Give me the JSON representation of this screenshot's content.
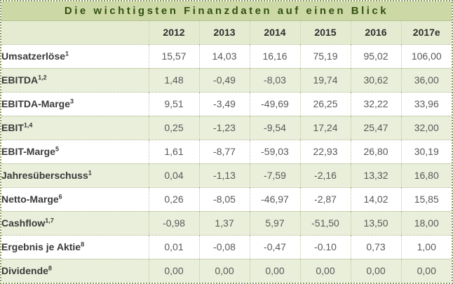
{
  "window": {
    "title": "Die wichtigsten Finanzdaten auf einen Blick"
  },
  "colors": {
    "title_bg": "#cdd8a7",
    "title_text": "#32500f",
    "header_bg": "#e5ebd1",
    "row_alt_bg": "#eaefdb",
    "row_bg": "#ffffff",
    "border_outer": "#8d9c5e",
    "label_text": "#3a3a3a",
    "value_text": "#595959"
  },
  "chart_data": {
    "type": "table",
    "title": "Die wichtigsten Finanzdaten auf einen Blick",
    "columns": [
      "2012",
      "2013",
      "2014",
      "2015",
      "2016",
      "2017e"
    ],
    "rows": [
      {
        "label": "Umsatzerlöse",
        "sup": "1",
        "values": [
          "15,57",
          "14,03",
          "16,16",
          "75,19",
          "95,02",
          "106,00"
        ]
      },
      {
        "label": "EBITDA",
        "sup": "1,2",
        "values": [
          "1,48",
          "-0,49",
          "-8,03",
          "19,74",
          "30,62",
          "36,00"
        ]
      },
      {
        "label": "EBITDA-Marge",
        "sup": "3",
        "values": [
          "9,51",
          "-3,49",
          "-49,69",
          "26,25",
          "32,22",
          "33,96"
        ]
      },
      {
        "label": "EBIT",
        "sup": "1,4",
        "values": [
          "0,25",
          "-1,23",
          "-9,54",
          "17,24",
          "25,47",
          "32,00"
        ]
      },
      {
        "label": "EBIT-Marge",
        "sup": "5",
        "values": [
          "1,61",
          "-8,77",
          "-59,03",
          "22,93",
          "26,80",
          "30,19"
        ]
      },
      {
        "label": "Jahresüberschuss",
        "sup": "1",
        "values": [
          "0,04",
          "-1,13",
          "-7,59",
          "-2,16",
          "13,32",
          "16,80"
        ]
      },
      {
        "label": "Netto-Marge",
        "sup": "6",
        "values": [
          "0,26",
          "-8,05",
          "-46,97",
          "-2,87",
          "14,02",
          "15,85"
        ]
      },
      {
        "label": "Cashflow",
        "sup": "1,7",
        "values": [
          "-0,98",
          "1,37",
          "5,97",
          "-51,50",
          "13,50",
          "18,00"
        ]
      },
      {
        "label": "Ergebnis je Aktie",
        "sup": "8",
        "values": [
          "0,01",
          "-0,08",
          "-0,47",
          "-0.10",
          "0,73",
          "1,00"
        ]
      },
      {
        "label": "Dividende",
        "sup": "8",
        "values": [
          "0,00",
          "0,00",
          "0,00",
          "0,00",
          "0,00",
          "0,00"
        ]
      }
    ]
  }
}
